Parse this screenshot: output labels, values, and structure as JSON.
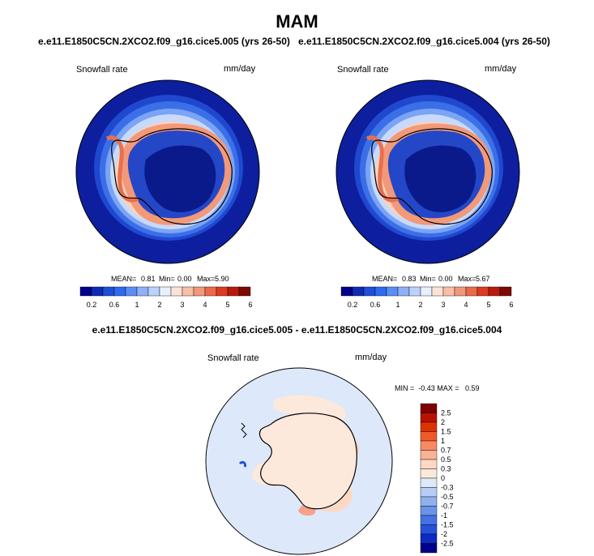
{
  "title": "MAM",
  "panels": [
    {
      "case_label": "e.e11.E1850C5CN.2XCO2.f09_g16.cice5.005 (yrs 26-50)",
      "var": "Snowfall rate",
      "units": "mm/day",
      "stats": {
        "mean_label": "MEAN=",
        "mean": "0.81",
        "min_label": "Min=",
        "min": "0.00",
        "max_label": "Max=",
        "max": "5.90"
      }
    },
    {
      "case_label": "e.e11.E1850C5CN.2XCO2.f09_g16.cice5.004 (yrs 26-50)",
      "var": "Snowfall rate",
      "units": "mm/day",
      "stats": {
        "mean_label": "MEAN=",
        "mean": "0.83",
        "min_label": "Min=",
        "min": "0.00",
        "max_label": "Max=",
        "max": "5.67"
      }
    }
  ],
  "colorbar": {
    "colors": [
      "#00008b",
      "#0f2bb3",
      "#1e4fd6",
      "#2d6cf0",
      "#5b8ef5",
      "#8db0f8",
      "#bcd2fb",
      "#e8f0ff",
      "#fde2d6",
      "#f9bea6",
      "#f3977a",
      "#ea6a4c",
      "#dc3b22",
      "#b81b0c",
      "#7d0a03"
    ],
    "labels": [
      "0.2",
      "0.6",
      "1",
      "2",
      "3",
      "4",
      "5",
      "6"
    ],
    "label_positions": [
      0.5,
      2.5,
      4.5,
      6.5,
      8.5,
      10.5,
      12.5,
      14.5
    ]
  },
  "diff": {
    "title": "e.e11.E1850C5CN.2XCO2.f09_g16.cice5.005 - e.e11.E1850C5CN.2XCO2.f09_g16.cice5.004",
    "var": "Snowfall rate",
    "units": "mm/day",
    "stats_text": "MIN =  -0.43 MAX =   0.59",
    "colorbar_colors": [
      "#7d0000",
      "#b81200",
      "#e03200",
      "#f05a2a",
      "#f78a63",
      "#fab393",
      "#fdd9c4",
      "#fde9dc",
      "#dde8fa",
      "#b7cdf6",
      "#8eb1ef",
      "#6a93ea",
      "#4472e4",
      "#2552d9",
      "#0c2bc4",
      "#00008b"
    ],
    "colorbar_labels": [
      "2.5",
      "2",
      "1.5",
      "1",
      "0.7",
      "0.5",
      "0.3",
      "0",
      "-0.3",
      "-0.5",
      "-0.7",
      "-1",
      "-1.5",
      "-2",
      "-2.5"
    ]
  }
}
